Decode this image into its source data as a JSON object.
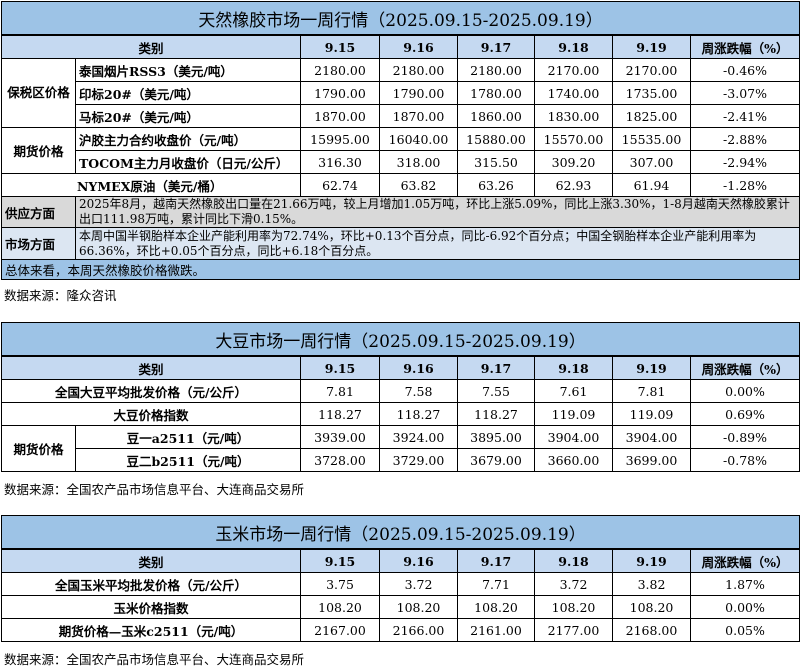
{
  "colors": {
    "title_bg": "#9dc3e6",
    "header_bg": "#c5d9f1",
    "supply_bg": "#d9d9d9",
    "market_bg": "#dce6f2"
  },
  "headers": {
    "category": "类别",
    "dates": [
      "9.15",
      "9.16",
      "9.17",
      "9.18",
      "9.19"
    ],
    "change": "周涨跌幅（%）"
  },
  "rubber": {
    "title": "天然橡胶市场一周行情（2025.09.15-2025.09.19）",
    "groups": {
      "bonded": "保税区价格",
      "futures": "期货价格"
    },
    "rows": [
      {
        "label": "泰国烟片RSS3（美元/吨）",
        "values": [
          "2180.00",
          "2180.00",
          "2180.00",
          "2170.00",
          "2170.00"
        ],
        "change": "-0.46%"
      },
      {
        "label": "印标20#（美元/吨）",
        "values": [
          "1790.00",
          "1790.00",
          "1780.00",
          "1740.00",
          "1735.00"
        ],
        "change": "-3.07%"
      },
      {
        "label": "马标20#（美元/吨）",
        "values": [
          "1870.00",
          "1870.00",
          "1860.00",
          "1830.00",
          "1825.00"
        ],
        "change": "-2.41%"
      },
      {
        "label": "沪胶主力合约收盘价（元/吨）",
        "values": [
          "15995.00",
          "16040.00",
          "15880.00",
          "15570.00",
          "15535.00"
        ],
        "change": "-2.88%"
      },
      {
        "label": "TOCOM主力月收盘价（日元/公斤）",
        "values": [
          "316.30",
          "318.00",
          "315.50",
          "309.20",
          "307.00"
        ],
        "change": "-2.94%"
      },
      {
        "label": "NYMEX原油（美元/桶）",
        "values": [
          "62.74",
          "63.82",
          "63.26",
          "62.93",
          "61.94"
        ],
        "change": "-1.28%"
      }
    ],
    "supply": {
      "label": "供应方面",
      "text": "2025年8月，越南天然橡胶出口量在21.66万吨，较上月增加1.05万吨，环比上涨5.09%，同比上涨3.30%，1-8月越南天然橡胶累计出口111.98万吨，累计同比下滑0.15%。"
    },
    "market": {
      "label": "市场方面",
      "text": "本周中国半钢胎样本企业产能利用率为72.74%，环比+0.13个百分点，同比-6.92个百分点；中国全钢胎样本企业产能利用率为66.36%，环比+0.05个百分点，同比+6.18个百分点。"
    },
    "summary": "总体来看，本周天然橡胶价格微跌。",
    "source": "数据来源：隆众咨讯"
  },
  "soybean": {
    "title": "大豆市场一周行情（2025.09.15-2025.09.19）",
    "futures_group": "期货价格",
    "rows": [
      {
        "label": "全国大豆平均批发价格（元/公斤）",
        "values": [
          "7.81",
          "7.58",
          "7.55",
          "7.61",
          "7.81"
        ],
        "change": "0.00%"
      },
      {
        "label": "大豆价格指数",
        "values": [
          "118.27",
          "118.27",
          "118.27",
          "119.09",
          "119.09"
        ],
        "change": "0.69%"
      },
      {
        "label": "豆一a2511（元/吨）",
        "values": [
          "3939.00",
          "3924.00",
          "3895.00",
          "3904.00",
          "3904.00"
        ],
        "change": "-0.89%"
      },
      {
        "label": "豆二b2511（元/吨）",
        "values": [
          "3728.00",
          "3729.00",
          "3679.00",
          "3660.00",
          "3699.00"
        ],
        "change": "-0.78%"
      }
    ],
    "source": "数据来源：全国农产品市场信息平台、大连商品交易所"
  },
  "corn": {
    "title": "玉米市场一周行情（2025.09.15-2025.09.19）",
    "rows": [
      {
        "label": "全国玉米平均批发价格（元/公斤）",
        "values": [
          "3.75",
          "3.72",
          "7.71",
          "3.72",
          "3.82"
        ],
        "change": "1.87%"
      },
      {
        "label": "玉米价格指数",
        "values": [
          "108.20",
          "108.20",
          "108.20",
          "108.20",
          "108.20"
        ],
        "change": "0.00%"
      },
      {
        "label": "期货价格—玉米c2511（元/吨）",
        "values": [
          "2167.00",
          "2166.00",
          "2161.00",
          "2177.00",
          "2168.00"
        ],
        "change": "0.05%"
      }
    ],
    "source": "数据来源：全国农产品市场信息平台、大连商品交易所"
  }
}
